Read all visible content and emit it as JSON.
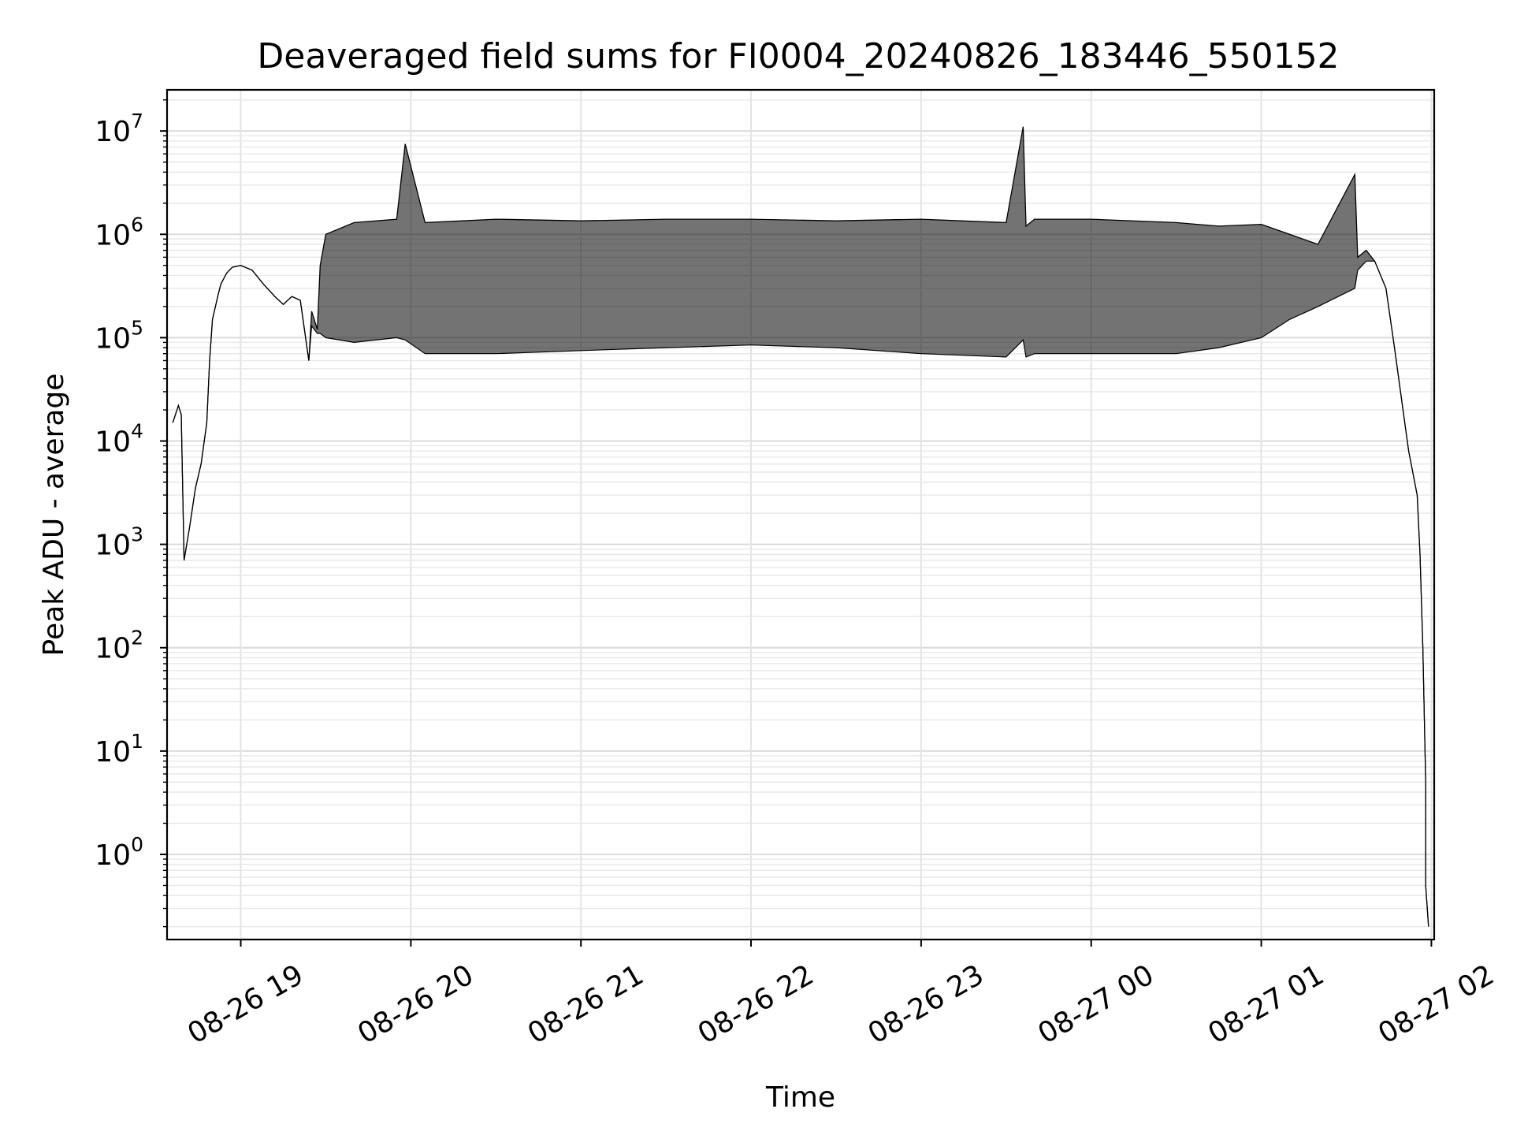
{
  "chart_data": {
    "type": "line",
    "title": "Deaveraged field sums for FI0004_20240826_183446_550152",
    "xlabel": "Time",
    "ylabel": "Peak ADU - average",
    "yscale": "log",
    "grid": true,
    "xlim": [
      "08-26 18:34",
      "08-27 02:01"
    ],
    "ylim": [
      0.15,
      25000000
    ],
    "x_ticks": [
      "08-26 19",
      "08-26 20",
      "08-26 21",
      "08-26 22",
      "08-26 23",
      "08-27 00",
      "08-27 01",
      "08-27 02"
    ],
    "y_ticks": [
      {
        "base": "10",
        "exp": "0",
        "value": 1
      },
      {
        "base": "10",
        "exp": "1",
        "value": 10
      },
      {
        "base": "10",
        "exp": "2",
        "value": 100
      },
      {
        "base": "10",
        "exp": "3",
        "value": 1000
      },
      {
        "base": "10",
        "exp": "4",
        "value": 10000
      },
      {
        "base": "10",
        "exp": "5",
        "value": 100000
      },
      {
        "base": "10",
        "exp": "6",
        "value": 1000000
      },
      {
        "base": "10",
        "exp": "7",
        "value": 10000000
      }
    ],
    "line_color": "#000000",
    "series": [
      {
        "x": [
          "08-26 18:36",
          "08-26 18:38",
          "08-26 18:39",
          "08-26 18:40",
          "08-26 18:42",
          "08-26 18:44",
          "08-26 18:46",
          "08-26 18:48",
          "08-26 18:49",
          "08-26 18:50",
          "08-26 18:52",
          "08-26 18:53",
          "08-26 18:55",
          "08-26 18:57",
          "08-26 19:00",
          "08-26 19:04",
          "08-26 19:08",
          "08-26 19:12",
          "08-26 19:15",
          "08-26 19:18",
          "08-26 19:21",
          "08-26 19:24",
          "08-26 19:25",
          "08-26 19:27",
          "08-26 19:28",
          "08-26 19:30",
          "08-26 19:40",
          "08-26 19:55",
          "08-26 19:58",
          "08-26 20:05",
          "08-26 20:30",
          "08-26 21:00",
          "08-26 21:30",
          "08-26 22:00",
          "08-26 22:30",
          "08-26 23:00",
          "08-26 23:30",
          "08-26 23:36",
          "08-26 23:37",
          "08-26 23:40",
          "08-27 00:00",
          "08-27 00:30",
          "08-27 00:45",
          "08-27 01:00",
          "08-27 01:10",
          "08-27 01:20",
          "08-27 01:33",
          "08-27 01:34",
          "08-27 01:37",
          "08-27 01:40",
          "08-27 01:44",
          "08-27 01:47",
          "08-27 01:50",
          "08-27 01:52",
          "08-27 01:55",
          "08-27 01:56",
          "08-27 01:57",
          "08-27 01:58",
          "08-27 01:58",
          "08-27 01:59"
        ],
        "y": [
          15000,
          22000,
          18000,
          700,
          1500,
          3500,
          6000,
          15000,
          60000,
          150000,
          260000,
          330000,
          420000,
          480000,
          500000,
          450000,
          330000,
          250000,
          210000,
          250000,
          230000,
          60000,
          180000,
          120000,
          500000,
          1000000,
          1300000,
          1400000,
          7500000,
          1300000,
          1400000,
          1350000,
          1400000,
          1400000,
          1350000,
          1400000,
          1300000,
          11000000,
          1200000,
          1400000,
          1400000,
          1300000,
          1200000,
          1250000,
          1000000,
          800000,
          3800000,
          600000,
          700000,
          550000,
          300000,
          80000,
          20000,
          8000,
          3000,
          800,
          100,
          5,
          0.5,
          0.2
        ],
        "y_low": [
          15000,
          22000,
          18000,
          700,
          1500,
          3500,
          6000,
          15000,
          60000,
          150000,
          260000,
          330000,
          420000,
          480000,
          500000,
          450000,
          330000,
          250000,
          210000,
          250000,
          230000,
          60000,
          130000,
          110000,
          110000,
          100000,
          90000,
          100000,
          95000,
          70000,
          70000,
          75000,
          80000,
          85000,
          80000,
          70000,
          65000,
          95000,
          65000,
          70000,
          70000,
          70000,
          80000,
          100000,
          150000,
          200000,
          300000,
          450000,
          550000,
          550000,
          300000,
          80000,
          20000,
          8000,
          3000,
          800,
          100,
          5,
          0.5,
          0.2
        ]
      }
    ]
  }
}
